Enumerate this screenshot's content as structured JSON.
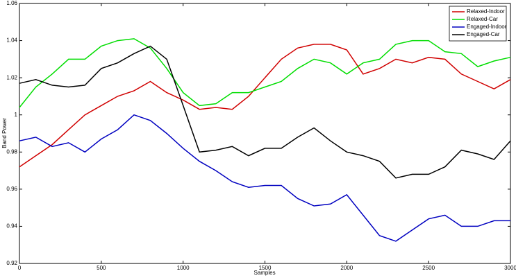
{
  "chart_data": {
    "type": "line",
    "x_label": "Samples",
    "y_label": "Band Power",
    "x": [
      0,
      100,
      200,
      300,
      400,
      500,
      600,
      700,
      800,
      900,
      1000,
      1100,
      1200,
      1300,
      1400,
      1500,
      1600,
      1700,
      1800,
      1900,
      2000,
      2100,
      2200,
      2300,
      2400,
      2500,
      2600,
      2700,
      2800,
      2900,
      3000
    ],
    "series": [
      {
        "name": "Relaxed-Indoor",
        "color": "#d00000",
        "values": [
          0.972,
          0.978,
          0.984,
          0.992,
          1.0,
          1.005,
          1.01,
          1.013,
          1.018,
          1.012,
          1.008,
          1.003,
          1.004,
          1.003,
          1.01,
          1.02,
          1.03,
          1.036,
          1.038,
          1.038,
          1.035,
          1.022,
          1.025,
          1.03,
          1.028,
          1.031,
          1.03,
          1.022,
          1.018,
          1.014,
          1.019
        ]
      },
      {
        "name": "Relaxed-Car",
        "color": "#00dd00",
        "values": [
          1.004,
          1.015,
          1.022,
          1.03,
          1.03,
          1.037,
          1.04,
          1.041,
          1.036,
          1.025,
          1.012,
          1.005,
          1.006,
          1.012,
          1.012,
          1.015,
          1.018,
          1.025,
          1.03,
          1.028,
          1.022,
          1.028,
          1.03,
          1.038,
          1.04,
          1.04,
          1.034,
          1.033,
          1.026,
          1.029,
          1.031
        ]
      },
      {
        "name": "Engaged-Indoor",
        "color": "#0000c0",
        "values": [
          0.986,
          0.988,
          0.983,
          0.985,
          0.98,
          0.987,
          0.992,
          1.0,
          0.997,
          0.99,
          0.982,
          0.975,
          0.97,
          0.964,
          0.961,
          0.962,
          0.962,
          0.955,
          0.951,
          0.952,
          0.957,
          0.946,
          0.935,
          0.932,
          0.938,
          0.944,
          0.946,
          0.94,
          0.94,
          0.943,
          0.943
        ]
      },
      {
        "name": "Engaged-Car",
        "color": "#000000",
        "values": [
          1.017,
          1.019,
          1.016,
          1.015,
          1.016,
          1.025,
          1.028,
          1.033,
          1.037,
          1.03,
          1.005,
          0.98,
          0.981,
          0.983,
          0.978,
          0.982,
          0.982,
          0.988,
          0.993,
          0.986,
          0.98,
          0.978,
          0.975,
          0.966,
          0.968,
          0.968,
          0.972,
          0.981,
          0.979,
          0.976,
          0.986
        ]
      }
    ],
    "xlim": [
      0,
      3000
    ],
    "xticks": [
      0,
      500,
      1000,
      1500,
      2000,
      2500,
      3000
    ],
    "ylim": [
      0.92,
      1.06
    ],
    "yticks": [
      0.92,
      0.94,
      0.96,
      0.98,
      1,
      1.02,
      1.04,
      1.06
    ],
    "grid": false,
    "legend": "top-right"
  }
}
